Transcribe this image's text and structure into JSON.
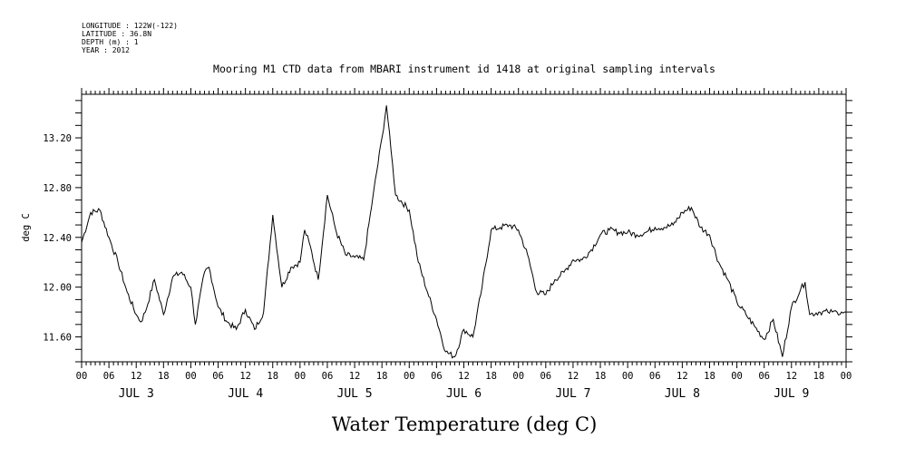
{
  "header": {
    "longitude": "LONGITUDE : 122W(-122)",
    "latitude": "LATITUDE : 36.8N",
    "depth": "DEPTH (m) : 1",
    "year": "YEAR : 2012"
  },
  "chart_data": {
    "type": "line",
    "title": "Mooring M1 CTD data from MBARI instrument id 1418 at original sampling intervals",
    "xlabel": "Water Temperature (deg C)",
    "ylabel": "deg C",
    "xlim": [
      "2012-07-03T00:00",
      "2012-07-10T00:00"
    ],
    "ylim": [
      11.4,
      13.55
    ],
    "yticks": [
      "13.20",
      "12.80",
      "12.40",
      "12.00",
      "11.60"
    ],
    "hour_tick_labels": [
      "00",
      "06",
      "12",
      "18"
    ],
    "day_labels": [
      "JUL 3",
      "JUL 4",
      "JUL 5",
      "JUL 6",
      "JUL 7",
      "JUL 8",
      "JUL 9"
    ],
    "series": [
      {
        "x": [
          "2012-07-03T00:00",
          "2012-07-03T02:00",
          "2012-07-03T04:00",
          "2012-07-03T06:00",
          "2012-07-03T08:00",
          "2012-07-03T10:00",
          "2012-07-03T12:00",
          "2012-07-03T13:00",
          "2012-07-03T14:00",
          "2012-07-03T16:00",
          "2012-07-03T18:00",
          "2012-07-03T20:00",
          "2012-07-03T22:00",
          "2012-07-04T00:00",
          "2012-07-04T01:00",
          "2012-07-04T03:00",
          "2012-07-04T04:00",
          "2012-07-04T06:00",
          "2012-07-04T08:00",
          "2012-07-04T10:00",
          "2012-07-04T12:00",
          "2012-07-04T14:00",
          "2012-07-04T16:00",
          "2012-07-04T18:00",
          "2012-07-04T20:00",
          "2012-07-04T22:00",
          "2012-07-05T00:00",
          "2012-07-05T01:00",
          "2012-07-05T02:00",
          "2012-07-05T04:00",
          "2012-07-05T06:00",
          "2012-07-05T08:00",
          "2012-07-05T10:00",
          "2012-07-05T12:00",
          "2012-07-05T14:00",
          "2012-07-05T16:00",
          "2012-07-05T18:00",
          "2012-07-05T19:00",
          "2012-07-05T20:00",
          "2012-07-05T21:00",
          "2012-07-06T00:00",
          "2012-07-06T02:00",
          "2012-07-06T04:00",
          "2012-07-06T06:00",
          "2012-07-06T08:00",
          "2012-07-06T10:00",
          "2012-07-06T12:00",
          "2012-07-06T14:00",
          "2012-07-06T16:00",
          "2012-07-06T18:00",
          "2012-07-06T20:00",
          "2012-07-06T22:00",
          "2012-07-07T00:00",
          "2012-07-07T02:00",
          "2012-07-07T04:00",
          "2012-07-07T06:00",
          "2012-07-07T08:00",
          "2012-07-07T10:00",
          "2012-07-07T12:00",
          "2012-07-07T14:00",
          "2012-07-07T16:00",
          "2012-07-07T18:00",
          "2012-07-07T20:00",
          "2012-07-07T22:00",
          "2012-07-08T00:00",
          "2012-07-08T02:00",
          "2012-07-08T04:00",
          "2012-07-08T06:00",
          "2012-07-08T08:00",
          "2012-07-08T10:00",
          "2012-07-08T12:00",
          "2012-07-08T14:00",
          "2012-07-08T16:00",
          "2012-07-08T18:00",
          "2012-07-08T20:00",
          "2012-07-08T22:00",
          "2012-07-09T00:00",
          "2012-07-09T02:00",
          "2012-07-09T04:00",
          "2012-07-09T06:00",
          "2012-07-09T08:00",
          "2012-07-09T10:00",
          "2012-07-09T12:00",
          "2012-07-09T14:00",
          "2012-07-09T15:00",
          "2012-07-09T16:00",
          "2012-07-09T18:00",
          "2012-07-09T20:00",
          "2012-07-09T21:00",
          "2012-07-09T22:00",
          "2012-07-09T23:00",
          "2012-07-10T00:00"
        ],
        "y": [
          12.36,
          12.6,
          12.62,
          12.4,
          12.2,
          11.96,
          11.78,
          11.72,
          11.8,
          12.06,
          11.78,
          12.08,
          12.12,
          12.0,
          11.7,
          12.12,
          12.16,
          11.84,
          11.72,
          11.66,
          11.82,
          11.66,
          11.8,
          12.58,
          12.0,
          12.16,
          12.2,
          12.46,
          12.36,
          12.06,
          12.74,
          12.44,
          12.26,
          12.24,
          12.22,
          12.72,
          13.2,
          13.46,
          13.1,
          12.74,
          12.62,
          12.2,
          11.96,
          11.74,
          11.48,
          11.44,
          11.66,
          11.6,
          12.0,
          12.46,
          12.48,
          12.5,
          12.46,
          12.26,
          11.96,
          11.94,
          12.06,
          12.12,
          12.22,
          12.22,
          12.3,
          12.42,
          12.46,
          12.44,
          12.44,
          12.42,
          12.44,
          12.48,
          12.48,
          12.5,
          12.6,
          12.64,
          12.48,
          12.42,
          12.2,
          12.06,
          11.88,
          11.78,
          11.68,
          11.58,
          11.74,
          11.44,
          11.84,
          11.98,
          12.04,
          11.78,
          11.8,
          11.8,
          11.8,
          11.8,
          11.8,
          11.8
        ]
      }
    ]
  }
}
